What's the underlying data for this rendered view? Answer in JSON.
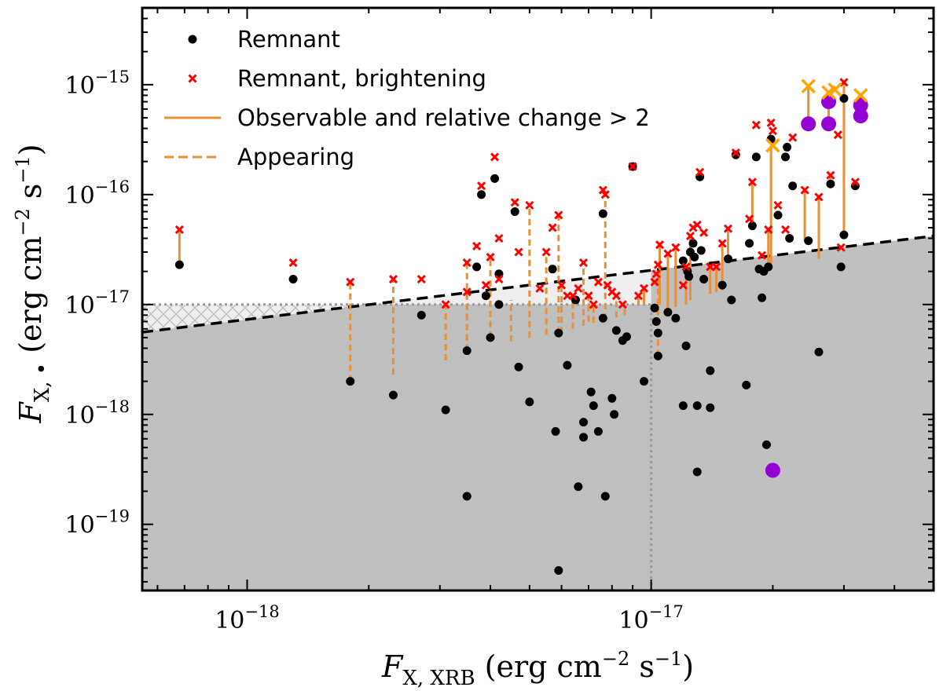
{
  "chart_data": {
    "type": "scatter",
    "xscale": "log",
    "yscale": "log",
    "xlim": [
      5.5e-19,
      5e-17
    ],
    "ylim": [
      2.5e-20,
      5e-15
    ],
    "xlabel": {
      "sym": "F",
      "sub": "X, XRB",
      "units": "(erg cm",
      "exp1": "−2",
      "mid": " s",
      "exp2": "−1",
      "close": ")"
    },
    "ylabel": {
      "sym": "F",
      "sub": "X, •",
      "units": "(erg cm",
      "exp1": "−2",
      "mid": " s",
      "exp2": "−1",
      "close": ")"
    },
    "xticks": [
      {
        "value": 1e-18,
        "base": "10",
        "exp": "−18"
      },
      {
        "value": 1e-17,
        "base": "10",
        "exp": "−17"
      }
    ],
    "yticks": [
      {
        "value": 1e-19,
        "base": "10",
        "exp": "−19"
      },
      {
        "value": 1e-18,
        "base": "10",
        "exp": "−18"
      },
      {
        "value": 1e-17,
        "base": "10",
        "exp": "−17"
      },
      {
        "value": 1e-16,
        "base": "10",
        "exp": "−16"
      },
      {
        "value": 1e-15,
        "base": "10",
        "exp": "−15"
      }
    ],
    "threshold": {
      "flux_limit": 1e-17,
      "line_x": [
        5.5e-19,
        5e-17
      ],
      "line_y": [
        5.6e-18,
        4.2e-17
      ]
    },
    "legend": [
      {
        "label": "Remnant",
        "kind": "dot"
      },
      {
        "label": "Remnant, brightening",
        "kind": "cross"
      },
      {
        "label": "Observable and relative change > 2",
        "kind": "solid"
      },
      {
        "label": "Appearing",
        "kind": "dashed"
      }
    ],
    "colors": {
      "remnant": "#000000",
      "brightening": "#ff0000",
      "segment": "#e69138",
      "highlight_cross": "#ffa500",
      "highlight_dot": "#9400d3",
      "shade_dark": "#c0c0c0",
      "shade_light": "#eeeeee",
      "threshold_line": "#000000"
    },
    "remnant": [
      [
        6.8e-19,
        2.3e-17
      ],
      [
        1.3e-18,
        1.7e-17
      ],
      [
        1.8e-18,
        2e-18
      ],
      [
        2.3e-18,
        1.5e-18
      ],
      [
        2.7e-18,
        8e-18
      ],
      [
        3.1e-18,
        1.1e-18
      ],
      [
        3.5e-18,
        1.8e-19
      ],
      [
        3.5e-18,
        3.8e-18
      ],
      [
        3.7e-18,
        2.2e-17
      ],
      [
        3.8e-18,
        1e-16
      ],
      [
        3.9e-18,
        1.2e-17
      ],
      [
        4e-18,
        5e-18
      ],
      [
        4.1e-18,
        1.4e-16
      ],
      [
        4.2e-18,
        1.9e-17
      ],
      [
        4.2e-18,
        1e-17
      ],
      [
        4.6e-18,
        7e-17
      ],
      [
        4.7e-18,
        2.7e-18
      ],
      [
        5e-18,
        1.3e-18
      ],
      [
        5.7e-18,
        2.1e-17
      ],
      [
        5.8e-18,
        7e-19
      ],
      [
        5.9e-18,
        5.5e-18
      ],
      [
        5.9e-18,
        3.8e-20
      ],
      [
        6.2e-18,
        2.8e-18
      ],
      [
        6.5e-18,
        1.1e-17
      ],
      [
        6.6e-18,
        2.2e-19
      ],
      [
        6.8e-18,
        8.5e-19
      ],
      [
        6.8e-18,
        6.2e-19
      ],
      [
        7.1e-18,
        1.6e-18
      ],
      [
        7.2e-18,
        1.2e-18
      ],
      [
        7.4e-18,
        7e-19
      ],
      [
        7.6e-18,
        6.7e-17
      ],
      [
        7.6e-18,
        7.5e-18
      ],
      [
        7.7e-18,
        1.8e-19
      ],
      [
        8e-18,
        1.4e-18
      ],
      [
        8.1e-18,
        1e-18
      ],
      [
        8.2e-18,
        5.8e-18
      ],
      [
        8.5e-18,
        4.7e-18
      ],
      [
        8.7e-18,
        5.1e-18
      ],
      [
        9e-18,
        1.8e-16
      ],
      [
        9.6e-18,
        2e-18
      ],
      [
        1.02e-17,
        9.3e-18
      ],
      [
        1.03e-17,
        7e-18
      ],
      [
        1.04e-17,
        5.5e-18
      ],
      [
        1.04e-17,
        3.4e-18
      ],
      [
        1.1e-17,
        8.5e-18
      ],
      [
        1.15e-17,
        7.5e-18
      ],
      [
        1.2e-17,
        1.2e-18
      ],
      [
        1.2e-17,
        2.5e-17
      ],
      [
        1.22e-17,
        4.2e-18
      ],
      [
        1.23e-17,
        2e-17
      ],
      [
        1.24e-17,
        1.8e-17
      ],
      [
        1.25e-17,
        3e-17
      ],
      [
        1.27e-17,
        3.6e-17
      ],
      [
        1.28e-17,
        2.7e-17
      ],
      [
        1.3e-17,
        1.2e-18
      ],
      [
        1.3e-17,
        3e-19
      ],
      [
        1.32e-17,
        1.45e-16
      ],
      [
        1.33e-17,
        3.1e-17
      ],
      [
        1.35e-17,
        1.7e-17
      ],
      [
        1.4e-17,
        2.5e-18
      ],
      [
        1.4e-17,
        1.15e-18
      ],
      [
        1.5e-17,
        1.5e-17
      ],
      [
        1.55e-17,
        2.6e-17
      ],
      [
        1.58e-17,
        1.1e-17
      ],
      [
        1.62e-17,
        2.3e-16
      ],
      [
        1.72e-17,
        1.85e-18
      ],
      [
        1.75e-17,
        3.6e-17
      ],
      [
        1.78e-17,
        5.2e-17
      ],
      [
        1.82e-17,
        2.2e-16
      ],
      [
        1.85e-17,
        2.1e-17
      ],
      [
        1.88e-17,
        1.15e-17
      ],
      [
        1.9e-17,
        2e-17
      ],
      [
        1.93e-17,
        5.3e-19
      ],
      [
        1.95e-17,
        2.2e-17
      ],
      [
        1.98e-17,
        3.2e-16
      ],
      [
        2.06e-17,
        6.5e-17
      ],
      [
        2.15e-17,
        2.2e-16
      ],
      [
        2.17e-17,
        2.7e-16
      ],
      [
        2.2e-17,
        4e-17
      ],
      [
        2.24e-17,
        1.2e-16
      ],
      [
        2.45e-17,
        3.8e-17
      ],
      [
        2.6e-17,
        3.7e-18
      ],
      [
        2.78e-17,
        1.25e-16
      ],
      [
        2.95e-17,
        2.2e-17
      ],
      [
        3e-17,
        4.3e-17
      ],
      [
        3e-17,
        7.5e-16
      ],
      [
        3.2e-17,
        1.2e-16
      ]
    ],
    "brightening": [
      [
        6.8e-19,
        4.8e-17
      ],
      [
        1.3e-18,
        2.4e-17
      ],
      [
        1.8e-18,
        1.6e-17
      ],
      [
        2.3e-18,
        1.7e-17
      ],
      [
        2.7e-18,
        1.7e-17
      ],
      [
        3.1e-18,
        1e-17
      ],
      [
        3.5e-18,
        1.3e-17
      ],
      [
        3.5e-18,
        2.4e-17
      ],
      [
        3.7e-18,
        3.4e-17
      ],
      [
        3.8e-18,
        1.2e-16
      ],
      [
        3.9e-18,
        1.5e-17
      ],
      [
        4e-18,
        2.7e-17
      ],
      [
        4.1e-18,
        2.2e-16
      ],
      [
        4.2e-18,
        4e-17
      ],
      [
        4.2e-18,
        1.7e-17
      ],
      [
        4.6e-18,
        8.5e-17
      ],
      [
        4.7e-18,
        3e-17
      ],
      [
        5e-18,
        8e-17
      ],
      [
        5.3e-18,
        1.4e-17
      ],
      [
        5.5e-18,
        3e-17
      ],
      [
        5.7e-18,
        5e-17
      ],
      [
        5.9e-18,
        6.5e-17
      ],
      [
        6e-18,
        1.5e-17
      ],
      [
        6.2e-18,
        1.2e-17
      ],
      [
        6.4e-18,
        1.2e-17
      ],
      [
        6.6e-18,
        1.4e-17
      ],
      [
        6.8e-18,
        2.4e-17
      ],
      [
        7e-18,
        1.2e-17
      ],
      [
        7.2e-18,
        1e-17
      ],
      [
        7.4e-18,
        1.6e-17
      ],
      [
        7.6e-18,
        1.1e-16
      ],
      [
        7.7e-18,
        1e-16
      ],
      [
        7.8e-18,
        1.5e-17
      ],
      [
        8e-18,
        1.3e-17
      ],
      [
        8.2e-18,
        1.2e-17
      ],
      [
        8.5e-18,
        1e-17
      ],
      [
        9e-18,
        1.8e-16
      ],
      [
        9.3e-18,
        1.2e-17
      ],
      [
        9.6e-18,
        1.4e-17
      ],
      [
        1.02e-17,
        1.6e-17
      ],
      [
        1.03e-17,
        1.9e-17
      ],
      [
        1.04e-17,
        2.3e-17
      ],
      [
        1.05e-17,
        3.5e-17
      ],
      [
        1.1e-17,
        2.9e-17
      ],
      [
        1.15e-17,
        3.3e-17
      ],
      [
        1.2e-17,
        1.5e-17
      ],
      [
        1.22e-17,
        2.2e-17
      ],
      [
        1.25e-17,
        4.2e-17
      ],
      [
        1.27e-17,
        5e-17
      ],
      [
        1.3e-17,
        5.3e-17
      ],
      [
        1.32e-17,
        1.6e-16
      ],
      [
        1.35e-17,
        4.5e-17
      ],
      [
        1.4e-17,
        2.2e-17
      ],
      [
        1.45e-17,
        2.2e-17
      ],
      [
        1.5e-17,
        3.6e-17
      ],
      [
        1.55e-17,
        4.9e-17
      ],
      [
        1.62e-17,
        2.4e-16
      ],
      [
        1.75e-17,
        6e-17
      ],
      [
        1.78e-17,
        1.3e-16
      ],
      [
        1.82e-17,
        4.3e-16
      ],
      [
        1.88e-17,
        2.8e-17
      ],
      [
        1.95e-17,
        4.8e-17
      ],
      [
        1.98e-17,
        4.5e-16
      ],
      [
        2e-17,
        3.8e-16
      ],
      [
        2.06e-17,
        8e-17
      ],
      [
        2.15e-17,
        4.8e-17
      ],
      [
        2.24e-17,
        3.3e-16
      ],
      [
        2.4e-17,
        1.1e-16
      ],
      [
        2.6e-17,
        9.5e-17
      ],
      [
        2.78e-17,
        1.5e-16
      ],
      [
        2.9e-17,
        3.5e-16
      ],
      [
        2.95e-17,
        3.3e-17
      ],
      [
        3e-17,
        1.05e-15
      ],
      [
        3.2e-17,
        1.3e-16
      ]
    ],
    "highlight_dots": [
      [
        2e-17,
        3.1e-19
      ],
      [
        2.45e-17,
        4.4e-16
      ],
      [
        2.75e-17,
        4.4e-16
      ],
      [
        2.75e-17,
        7e-16
      ],
      [
        3.3e-17,
        6.5e-16
      ],
      [
        3.3e-17,
        5.2e-16
      ]
    ],
    "highlight_crosses": [
      [
        2e-17,
        2.8e-16
      ],
      [
        2.45e-17,
        9.7e-16
      ],
      [
        2.75e-17,
        8.5e-16
      ],
      [
        2.85e-17,
        9e-16
      ],
      [
        3.3e-17,
        8e-16
      ]
    ],
    "solid_segments": [
      [
        6.8e-19,
        2.3e-17,
        4.8e-17
      ],
      [
        9e-18,
        1.8e-16,
        1.8e-16
      ],
      [
        1.55e-17,
        2.6e-17,
        4.9e-17
      ],
      [
        1.78e-17,
        5.2e-17,
        1.3e-16
      ],
      [
        1.95e-17,
        2.2e-17,
        4.8e-17
      ],
      [
        1.98e-17,
        2.3e-17,
        2.8e-16
      ],
      [
        2.45e-17,
        4.4e-16,
        9.7e-16
      ],
      [
        2.4e-17,
        3.8e-17,
        1.1e-16
      ],
      [
        2.6e-17,
        2.6e-17,
        9.5e-17
      ],
      [
        2.75e-17,
        4.4e-16,
        8.5e-16
      ],
      [
        2.78e-17,
        1.25e-16,
        1.5e-16
      ],
      [
        3e-17,
        4.3e-17,
        1.05e-15
      ],
      [
        3.3e-17,
        5.2e-16,
        8e-16
      ],
      [
        1.05e-17,
        1e-17,
        3.5e-17
      ],
      [
        1.1e-17,
        9e-18,
        2.9e-17
      ],
      [
        1.15e-17,
        9.5e-18,
        3.3e-17
      ],
      [
        1.22e-17,
        1e-17,
        2.2e-17
      ],
      [
        9.6e-18,
        1e-17,
        1.4e-17
      ],
      [
        9.3e-18,
        1e-17,
        1.2e-17
      ],
      [
        1.4e-17,
        1.25e-17,
        2.2e-17
      ],
      [
        1.45e-17,
        1.3e-17,
        2.2e-17
      ],
      [
        1.5e-17,
        1.35e-17,
        3.6e-17
      ],
      [
        1.25e-17,
        1.1e-17,
        4.2e-17
      ]
    ],
    "dashed_segments": [
      [
        1.8e-18,
        2e-18,
        1.6e-17
      ],
      [
        2.3e-18,
        2.3e-18,
        1.7e-17
      ],
      [
        3.1e-18,
        3.1e-18,
        1e-17
      ],
      [
        3.5e-18,
        3.8e-18,
        1.3e-17
      ],
      [
        3.5e-18,
        3.8e-18,
        2.4e-17
      ],
      [
        4e-18,
        5e-18,
        2.7e-17
      ],
      [
        4.5e-18,
        4.6e-18,
        1.1e-17
      ],
      [
        5e-18,
        5e-18,
        8e-17
      ],
      [
        5.5e-18,
        5.3e-18,
        3e-17
      ],
      [
        5.9e-18,
        5.5e-18,
        6.5e-17
      ],
      [
        6.4e-18,
        6e-18,
        1.2e-17
      ],
      [
        6.8e-18,
        6.4e-18,
        2.4e-17
      ],
      [
        7.2e-18,
        6.8e-18,
        1e-17
      ],
      [
        7.7e-18,
        7.3e-18,
        1e-16
      ],
      [
        8.2e-18,
        7.6e-18,
        1.2e-17
      ],
      [
        8.6e-18,
        8e-18,
        1e-17
      ],
      [
        1.04e-17,
        3.4e-18,
        1.9e-17
      ],
      [
        7e-18,
        7e-18,
        1.2e-17
      ],
      [
        6e-18,
        5.5e-18,
        1.5e-17
      ]
    ]
  }
}
